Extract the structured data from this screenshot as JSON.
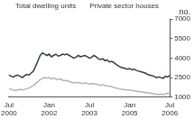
{
  "chart_data": {
    "type": "line",
    "ylabel": "no.",
    "categories": [
      "Jul 2000",
      null,
      null,
      null,
      null,
      null,
      null,
      null,
      null,
      null,
      null,
      null,
      null,
      null,
      null,
      null,
      null,
      null,
      "Jan 2002",
      null,
      null,
      null,
      null,
      null,
      null,
      null,
      null,
      null,
      null,
      null,
      null,
      null,
      null,
      null,
      null,
      null,
      "Jul 2003",
      null,
      null,
      null,
      null,
      null,
      null,
      null,
      null,
      null,
      null,
      null,
      null,
      null,
      null,
      null,
      null,
      null,
      "Jan 2005",
      null,
      null,
      null,
      null,
      null,
      null,
      null,
      null,
      null,
      null,
      null,
      null,
      null,
      null,
      null,
      null,
      null,
      "Jul 2006"
    ],
    "series": [
      {
        "name": "Total dwelling units",
        "color": "#333d4a",
        "values": [
          2700,
          2600,
          2550,
          2650,
          2700,
          2600,
          2500,
          2650,
          2750,
          2700,
          2850,
          3000,
          3400,
          3800,
          4200,
          4400,
          4300,
          4200,
          4300,
          4100,
          4200,
          4300,
          4150,
          4200,
          4300,
          4250,
          4300,
          4200,
          4100,
          4000,
          4050,
          4200,
          4100,
          4150,
          4200,
          4100,
          4000,
          4050,
          4200,
          4100,
          3950,
          3900,
          3950,
          3800,
          3850,
          3700,
          3750,
          3650,
          3500,
          3400,
          3300,
          3250,
          3200,
          3150,
          3200,
          3100,
          3150,
          3050,
          3000,
          2950,
          2900,
          2850,
          2750,
          2700,
          2650,
          2600,
          2500,
          2550,
          2500,
          2450,
          2600,
          2550,
          2650
        ]
      },
      {
        "name": "Private sector houses",
        "color": "#b4b4b4",
        "values": [
          1650,
          1600,
          1550,
          1500,
          1550,
          1600,
          1550,
          1600,
          1650,
          1700,
          1800,
          1900,
          2050,
          2200,
          2350,
          2450,
          2500,
          2450,
          2500,
          2400,
          2450,
          2400,
          2350,
          2400,
          2300,
          2250,
          2300,
          2200,
          2150,
          2100,
          2150,
          2100,
          2100,
          2050,
          2100,
          2050,
          2000,
          2050,
          2000,
          2000,
          1950,
          1900,
          1950,
          1900,
          1850,
          1850,
          1800,
          1750,
          1700,
          1650,
          1600,
          1600,
          1550,
          1550,
          1550,
          1500,
          1500,
          1450,
          1450,
          1400,
          1400,
          1350,
          1350,
          1300,
          1300,
          1250,
          1250,
          1200,
          1250,
          1200,
          1250,
          1300,
          1300
        ]
      }
    ],
    "ylim": [
      1000,
      7000
    ],
    "yticks": [
      1000,
      2500,
      4000,
      5500,
      7000
    ],
    "grid": false,
    "legend": "upper left"
  }
}
